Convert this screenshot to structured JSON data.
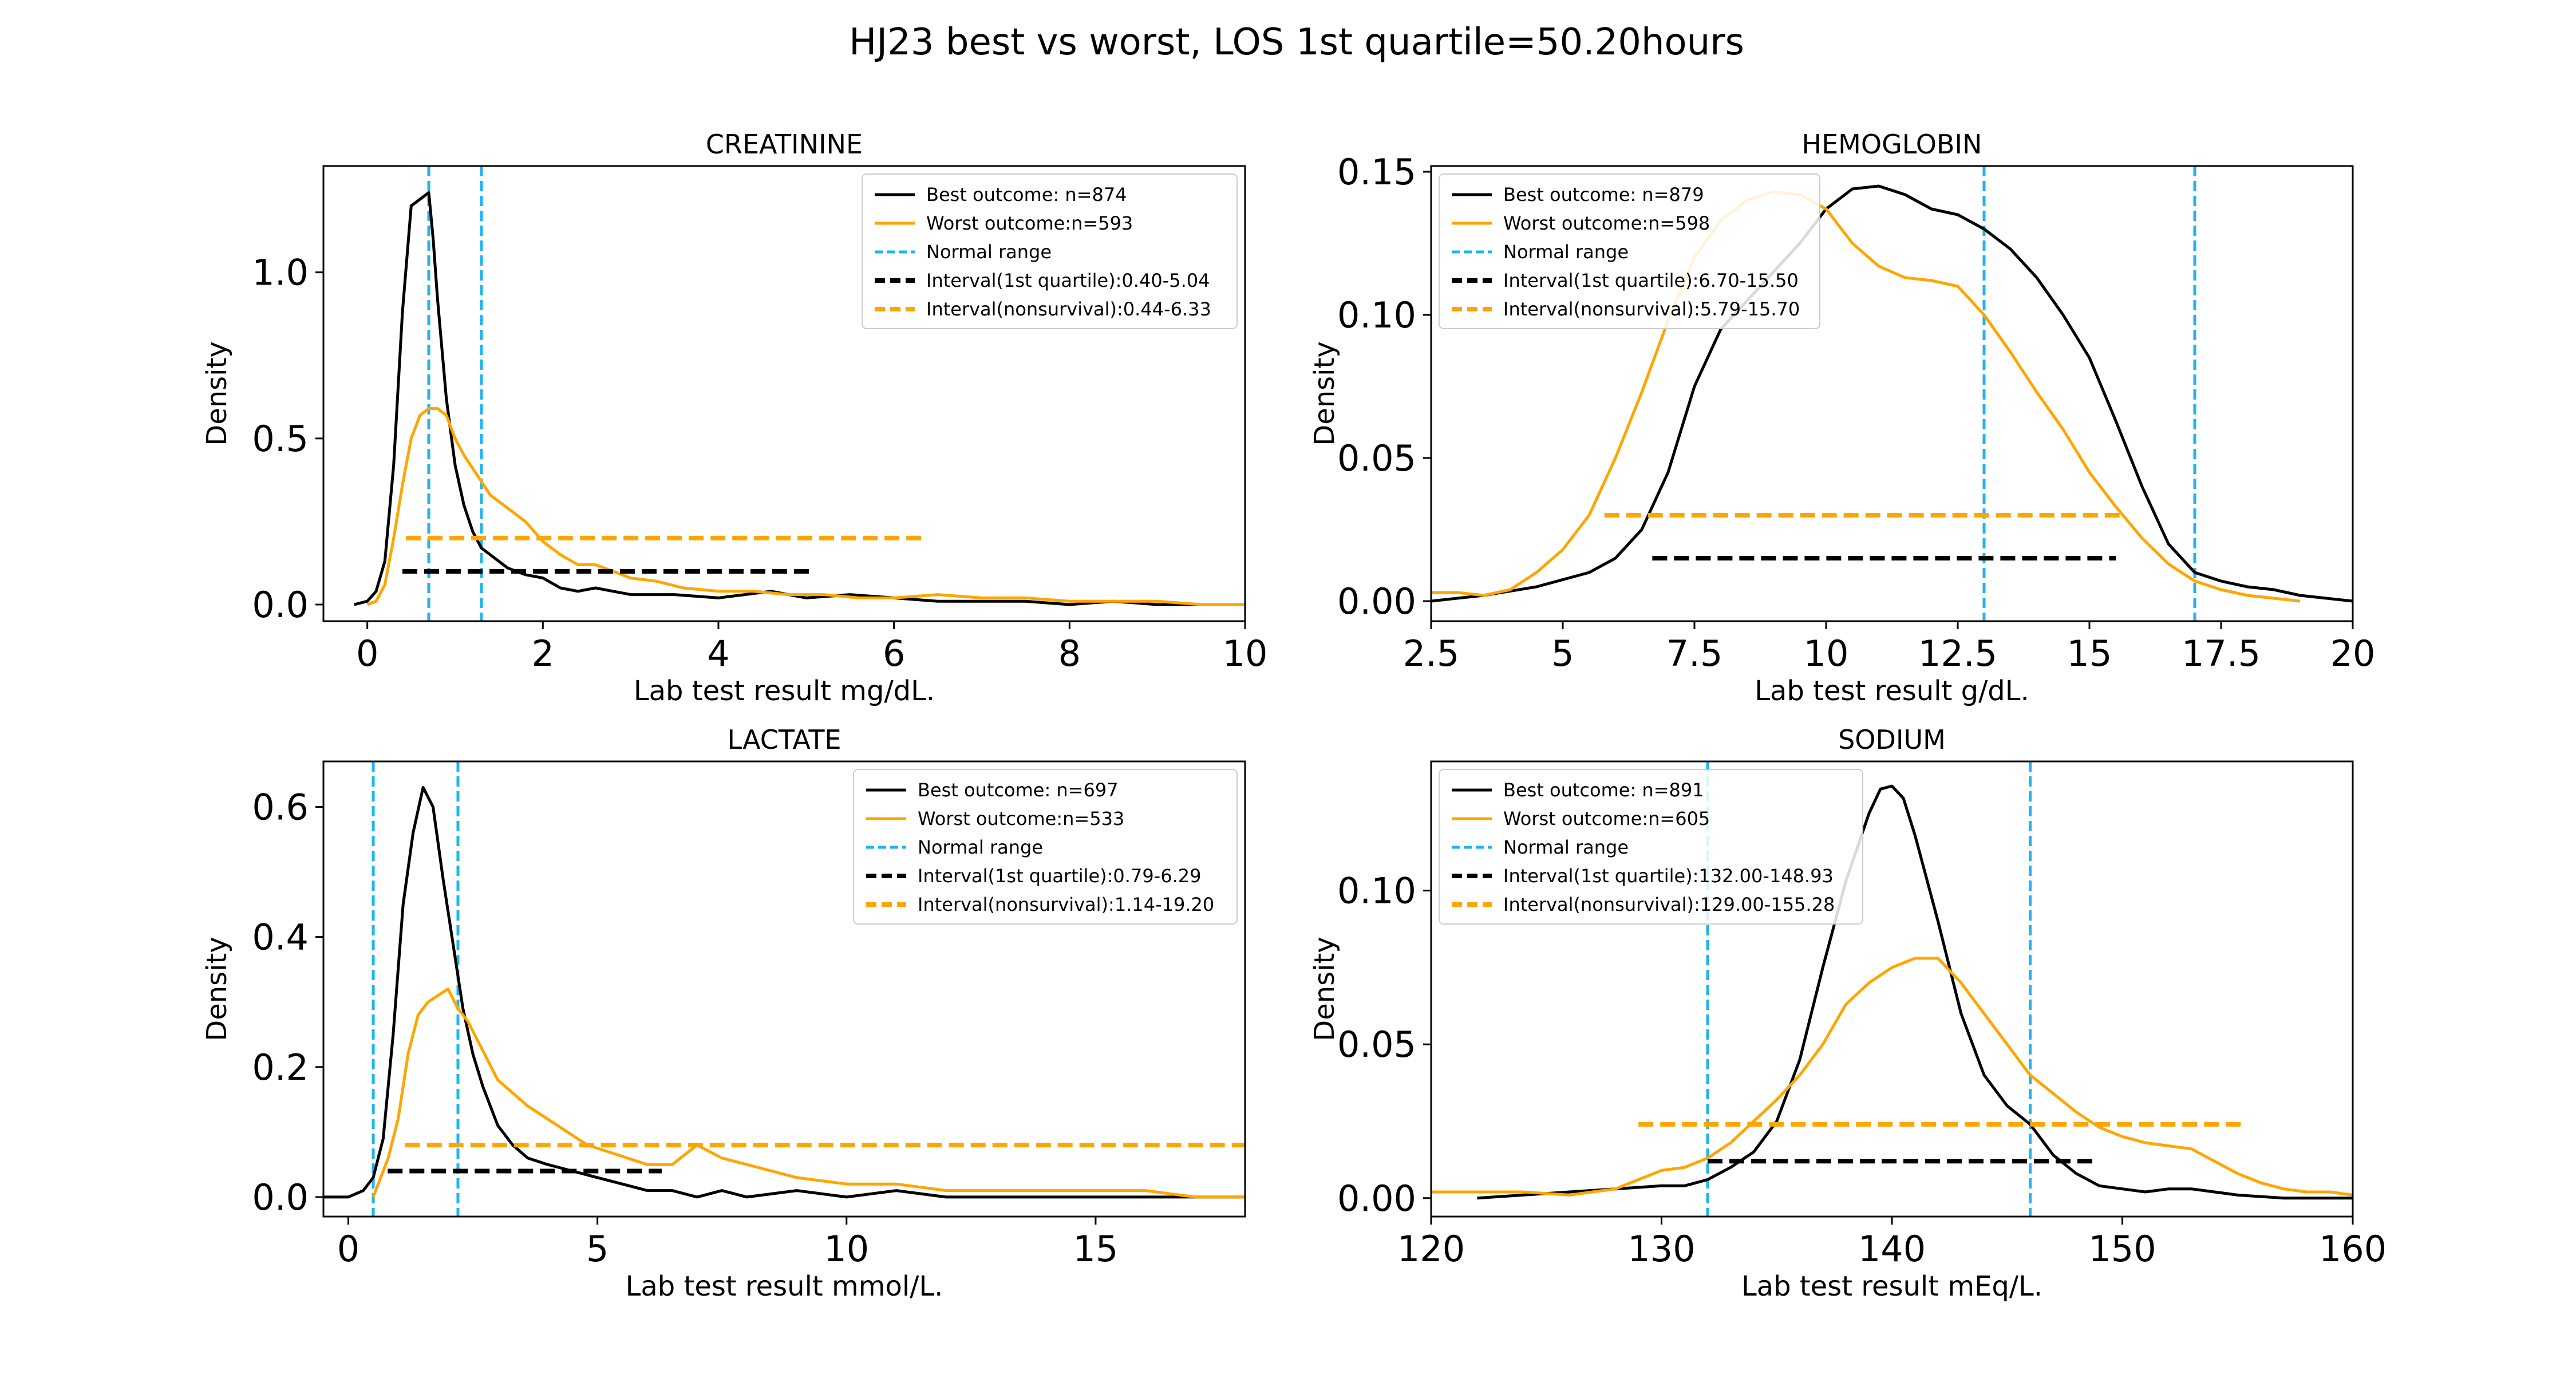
{
  "figure_title": "HJ23 best vs worst, LOS 1st quartile=50.20hours",
  "colors": {
    "best": "#000000",
    "worst": "#FFA500",
    "normal": "#1EB4F0"
  },
  "chart_data": [
    {
      "type": "line",
      "title": "CREATININE",
      "xlabel": "Lab test result mg/dL.",
      "ylabel": "Density",
      "xlim": [
        -0.5,
        10
      ],
      "ylim": [
        -0.05,
        1.32
      ],
      "xticks": [
        0,
        2,
        4,
        6,
        8,
        10
      ],
      "yticks": [
        0.0,
        0.5,
        1.0
      ],
      "ytick_labels": [
        "0.0",
        "0.5",
        "1.0"
      ],
      "legend_position": "top-right",
      "series": [
        {
          "name": "Best outcome: n=874",
          "color": "#000000",
          "x": [
            -0.15,
            0,
            0.1,
            0.2,
            0.3,
            0.4,
            0.5,
            0.6,
            0.7,
            0.75,
            0.8,
            0.9,
            1.0,
            1.1,
            1.2,
            1.3,
            1.4,
            1.6,
            1.8,
            2.0,
            2.2,
            2.4,
            2.6,
            2.8,
            3.0,
            3.5,
            4.0,
            4.3,
            4.6,
            5.0,
            5.5,
            6.0,
            6.5,
            7.0,
            7.5,
            8.0,
            8.5,
            9.0,
            10.0
          ],
          "y": [
            0.0,
            0.01,
            0.04,
            0.13,
            0.42,
            0.88,
            1.2,
            1.22,
            1.24,
            1.1,
            0.92,
            0.62,
            0.42,
            0.3,
            0.22,
            0.17,
            0.15,
            0.11,
            0.09,
            0.08,
            0.05,
            0.04,
            0.05,
            0.04,
            0.03,
            0.03,
            0.02,
            0.03,
            0.04,
            0.02,
            0.03,
            0.02,
            0.01,
            0.01,
            0.01,
            0.0,
            0.01,
            0.0,
            0.0
          ]
        },
        {
          "name": "Worst outcome:n=593",
          "color": "#FFA500",
          "x": [
            0,
            0.1,
            0.2,
            0.3,
            0.4,
            0.5,
            0.6,
            0.7,
            0.8,
            0.9,
            1.0,
            1.1,
            1.2,
            1.3,
            1.4,
            1.6,
            1.8,
            2.0,
            2.2,
            2.4,
            2.6,
            2.8,
            3.0,
            3.3,
            3.6,
            4.0,
            4.4,
            4.8,
            5.2,
            5.6,
            6.0,
            6.5,
            7.0,
            7.5,
            8.0,
            8.5,
            9.0,
            9.5,
            10.0
          ],
          "y": [
            0.0,
            0.01,
            0.06,
            0.2,
            0.36,
            0.5,
            0.57,
            0.59,
            0.59,
            0.57,
            0.5,
            0.45,
            0.41,
            0.37,
            0.33,
            0.29,
            0.25,
            0.19,
            0.15,
            0.12,
            0.12,
            0.1,
            0.08,
            0.07,
            0.05,
            0.04,
            0.04,
            0.03,
            0.03,
            0.02,
            0.02,
            0.03,
            0.02,
            0.02,
            0.01,
            0.01,
            0.01,
            0.0,
            0.0
          ]
        }
      ],
      "normal_range": {
        "label": "Normal range",
        "values": [
          0.7,
          1.3
        ]
      },
      "intervals": [
        {
          "label": "Interval(1st quartile):0.40-5.04",
          "color": "#000000",
          "xmin": 0.4,
          "xmax": 5.04,
          "y": 0.1
        },
        {
          "label": "Interval(nonsurvival):0.44-6.33",
          "color": "#FFA500",
          "xmin": 0.44,
          "xmax": 6.33,
          "y": 0.2
        }
      ]
    },
    {
      "type": "line",
      "title": "HEMOGLOBIN",
      "xlabel": "Lab test result g/dL.",
      "ylabel": "Density",
      "xlim": [
        2.5,
        20
      ],
      "ylim": [
        -0.007,
        0.152
      ],
      "xticks": [
        2.5,
        5,
        7.5,
        10,
        12.5,
        15,
        17.5,
        20
      ],
      "yticks": [
        0.0,
        0.05,
        0.1,
        0.15
      ],
      "ytick_labels": [
        "0.00",
        "0.05",
        "0.10",
        "0.15"
      ],
      "legend_position": "top-left",
      "series": [
        {
          "name": "Best outcome: n=879",
          "color": "#000000",
          "x": [
            2.5,
            3.5,
            4.5,
            5.5,
            6.0,
            6.5,
            7.0,
            7.5,
            8.0,
            8.5,
            9.0,
            9.5,
            10.0,
            10.5,
            11.0,
            11.5,
            12.0,
            12.5,
            13.0,
            13.5,
            14.0,
            14.5,
            15.0,
            15.5,
            16.0,
            16.5,
            17.0,
            17.5,
            18.0,
            18.5,
            19.0,
            19.5,
            20.0
          ],
          "y": [
            0.0,
            0.002,
            0.005,
            0.01,
            0.015,
            0.025,
            0.045,
            0.075,
            0.095,
            0.105,
            0.115,
            0.125,
            0.137,
            0.144,
            0.145,
            0.142,
            0.137,
            0.135,
            0.13,
            0.123,
            0.113,
            0.1,
            0.085,
            0.063,
            0.04,
            0.02,
            0.01,
            0.007,
            0.005,
            0.004,
            0.002,
            0.001,
            0.0
          ]
        },
        {
          "name": "Worst outcome:n=598",
          "color": "#FFA500",
          "x": [
            2.5,
            3.0,
            3.5,
            4.0,
            4.5,
            5.0,
            5.5,
            6.0,
            6.5,
            7.0,
            7.5,
            8.0,
            8.5,
            9.0,
            9.5,
            10.0,
            10.5,
            11.0,
            11.5,
            12.0,
            12.5,
            13.0,
            13.5,
            14.0,
            14.5,
            15.0,
            15.5,
            16.0,
            16.5,
            17.0,
            17.5,
            18.0,
            18.5,
            19.0
          ],
          "y": [
            0.003,
            0.003,
            0.002,
            0.004,
            0.01,
            0.018,
            0.03,
            0.05,
            0.073,
            0.098,
            0.12,
            0.133,
            0.14,
            0.143,
            0.142,
            0.137,
            0.125,
            0.117,
            0.113,
            0.112,
            0.11,
            0.1,
            0.087,
            0.073,
            0.06,
            0.045,
            0.033,
            0.022,
            0.013,
            0.007,
            0.004,
            0.002,
            0.001,
            0.0
          ]
        }
      ],
      "normal_range": {
        "label": "Normal range",
        "values": [
          13.0,
          17.0
        ]
      },
      "intervals": [
        {
          "label": "Interval(1st quartile):6.70-15.50",
          "color": "#000000",
          "xmin": 6.7,
          "xmax": 15.5,
          "y": 0.015
        },
        {
          "label": "Interval(nonsurvival):5.79-15.70",
          "color": "#FFA500",
          "xmin": 5.79,
          "xmax": 15.7,
          "y": 0.03
        }
      ]
    },
    {
      "type": "line",
      "title": "LACTATE",
      "xlabel": "Lab test result mmol/L.",
      "ylabel": "Density",
      "xlim": [
        -0.5,
        18
      ],
      "ylim": [
        -0.03,
        0.67
      ],
      "xticks": [
        0,
        5,
        10,
        15
      ],
      "yticks": [
        0.0,
        0.2,
        0.4,
        0.6
      ],
      "ytick_labels": [
        "0.0",
        "0.2",
        "0.4",
        "0.6"
      ],
      "legend_position": "top-right",
      "series": [
        {
          "name": "Best outcome: n=697",
          "color": "#000000",
          "x": [
            -0.5,
            0,
            0.3,
            0.5,
            0.7,
            0.9,
            1.1,
            1.3,
            1.5,
            1.7,
            1.9,
            2.1,
            2.3,
            2.5,
            2.7,
            3.0,
            3.3,
            3.6,
            4.0,
            4.5,
            5.0,
            5.5,
            6.0,
            6.5,
            7.0,
            7.5,
            8.0,
            9.0,
            10.0,
            11.0,
            12.0,
            13.0,
            14.0,
            15.0,
            16.0,
            17.0,
            18.0
          ],
          "y": [
            0.0,
            0.0,
            0.01,
            0.03,
            0.09,
            0.25,
            0.45,
            0.56,
            0.63,
            0.6,
            0.49,
            0.39,
            0.29,
            0.22,
            0.17,
            0.11,
            0.08,
            0.06,
            0.05,
            0.04,
            0.03,
            0.02,
            0.01,
            0.01,
            0.0,
            0.01,
            0.0,
            0.01,
            0.0,
            0.01,
            0.0,
            0.0,
            0.0,
            0.0,
            0.0,
            0.0,
            0.0
          ]
        },
        {
          "name": "Worst outcome:n=533",
          "color": "#FFA500",
          "x": [
            0.5,
            0.8,
            1.0,
            1.2,
            1.4,
            1.6,
            1.8,
            2.0,
            2.2,
            2.4,
            2.6,
            2.8,
            3.0,
            3.3,
            3.6,
            4.0,
            4.4,
            4.8,
            5.2,
            5.6,
            6.0,
            6.5,
            7.0,
            7.5,
            8.0,
            8.5,
            9.0,
            10.0,
            11.0,
            12.0,
            13.0,
            14.0,
            15.0,
            16.0,
            17.0,
            18.0
          ],
          "y": [
            0.0,
            0.06,
            0.12,
            0.22,
            0.28,
            0.3,
            0.31,
            0.32,
            0.29,
            0.27,
            0.24,
            0.21,
            0.18,
            0.16,
            0.14,
            0.12,
            0.1,
            0.08,
            0.07,
            0.06,
            0.05,
            0.05,
            0.08,
            0.06,
            0.05,
            0.04,
            0.03,
            0.02,
            0.02,
            0.01,
            0.01,
            0.01,
            0.01,
            0.01,
            0.0,
            0.0
          ]
        }
      ],
      "normal_range": {
        "label": "Normal range",
        "values": [
          0.5,
          2.2
        ]
      },
      "intervals": [
        {
          "label": "Interval(1st quartile):0.79-6.29",
          "color": "#000000",
          "xmin": 0.79,
          "xmax": 6.29,
          "y": 0.04
        },
        {
          "label": "Interval(nonsurvival):1.14-19.20",
          "color": "#FFA500",
          "xmin": 1.14,
          "xmax": 19.2,
          "y": 0.08
        }
      ]
    },
    {
      "type": "line",
      "title": "SODIUM",
      "xlabel": "Lab test result mEq/L.",
      "ylabel": "Density",
      "xlim": [
        120,
        160
      ],
      "ylim": [
        -0.006,
        0.142
      ],
      "xticks": [
        120,
        130,
        140,
        150,
        160
      ],
      "yticks": [
        0.0,
        0.05,
        0.1
      ],
      "ytick_labels": [
        "0.00",
        "0.05",
        "0.10"
      ],
      "legend_position": "top-left",
      "series": [
        {
          "name": "Best outcome: n=891",
          "color": "#000000",
          "x": [
            122,
            124,
            126,
            128,
            130,
            131,
            132,
            133,
            134,
            135,
            136,
            137,
            138,
            139,
            139.5,
            140,
            140.5,
            141,
            142,
            143,
            144,
            145,
            146,
            147,
            148,
            149,
            150,
            151,
            152,
            153,
            154,
            155,
            157,
            160
          ],
          "y": [
            0.0,
            0.001,
            0.002,
            0.003,
            0.004,
            0.004,
            0.006,
            0.01,
            0.015,
            0.025,
            0.045,
            0.075,
            0.103,
            0.125,
            0.133,
            0.134,
            0.13,
            0.118,
            0.09,
            0.06,
            0.04,
            0.03,
            0.024,
            0.014,
            0.008,
            0.004,
            0.003,
            0.002,
            0.003,
            0.003,
            0.002,
            0.001,
            0.0,
            0.0
          ]
        },
        {
          "name": "Worst outcome:n=605",
          "color": "#FFA500",
          "x": [
            120,
            122,
            124,
            126,
            128,
            129,
            130,
            131,
            132,
            133,
            134,
            135,
            136,
            137,
            138,
            139,
            140,
            141,
            142,
            143,
            144,
            145,
            146,
            147,
            148,
            149,
            150,
            151,
            152,
            153,
            154,
            155,
            156,
            157,
            158,
            159,
            160
          ],
          "y": [
            0.002,
            0.002,
            0.002,
            0.001,
            0.003,
            0.006,
            0.009,
            0.01,
            0.013,
            0.018,
            0.025,
            0.032,
            0.04,
            0.05,
            0.063,
            0.07,
            0.075,
            0.078,
            0.078,
            0.07,
            0.06,
            0.05,
            0.04,
            0.034,
            0.028,
            0.023,
            0.02,
            0.018,
            0.017,
            0.016,
            0.012,
            0.008,
            0.005,
            0.003,
            0.002,
            0.002,
            0.001
          ]
        }
      ],
      "normal_range": {
        "label": "Normal range",
        "values": [
          132,
          146
        ]
      },
      "intervals": [
        {
          "label": "Interval(1st quartile):132.00-148.93",
          "color": "#000000",
          "xmin": 132.0,
          "xmax": 148.93,
          "y": 0.012
        },
        {
          "label": "Interval(nonsurvival):129.00-155.28",
          "color": "#FFA500",
          "xmin": 129.0,
          "xmax": 155.28,
          "y": 0.024
        }
      ]
    }
  ]
}
